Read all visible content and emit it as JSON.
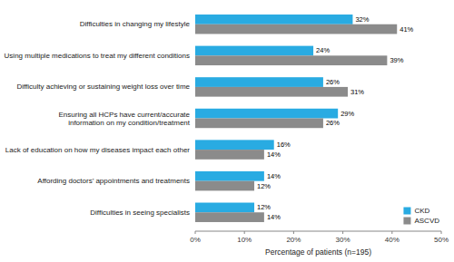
{
  "chart_data": {
    "type": "bar",
    "orientation": "horizontal",
    "categories": [
      "Difficulties in changing my lifestyle",
      "Using multiple medications to treat my different conditions",
      "Difficulty achieving or sustaining weight loss over time",
      "Ensuring all HCPs have current/accurate\ninformation on my condition/treatment",
      "Lack of education on how my diseases impact each other",
      "Affording doctors’ appointments and treatments",
      "Difficulties in seeing specialists"
    ],
    "series": [
      {
        "name": "CKD",
        "color": "#29ABE2",
        "values": [
          32,
          24,
          26,
          29,
          16,
          14,
          12
        ],
        "value_labels": [
          "32%",
          "24%",
          "26%",
          "29%",
          "16%",
          "14%",
          "12%"
        ]
      },
      {
        "name": "ASCVD",
        "color": "#8B8B8B",
        "values": [
          41,
          39,
          31,
          26,
          14,
          12,
          14
        ],
        "value_labels": [
          "41%",
          "39%",
          "31%",
          "26%",
          "14%",
          "12%",
          "14%"
        ]
      }
    ],
    "xlabel": "Percentage of patients (n=195)",
    "xlim": [
      0,
      50
    ],
    "xticks": [
      {
        "value": 0,
        "label": "0%"
      },
      {
        "value": 10,
        "label": "10%"
      },
      {
        "value": 20,
        "label": "20%"
      },
      {
        "value": 30,
        "label": "30%"
      },
      {
        "value": 40,
        "label": "40%"
      },
      {
        "value": 50,
        "label": "50%"
      }
    ],
    "data_labels": true,
    "legend": "lower right",
    "grid": false
  }
}
